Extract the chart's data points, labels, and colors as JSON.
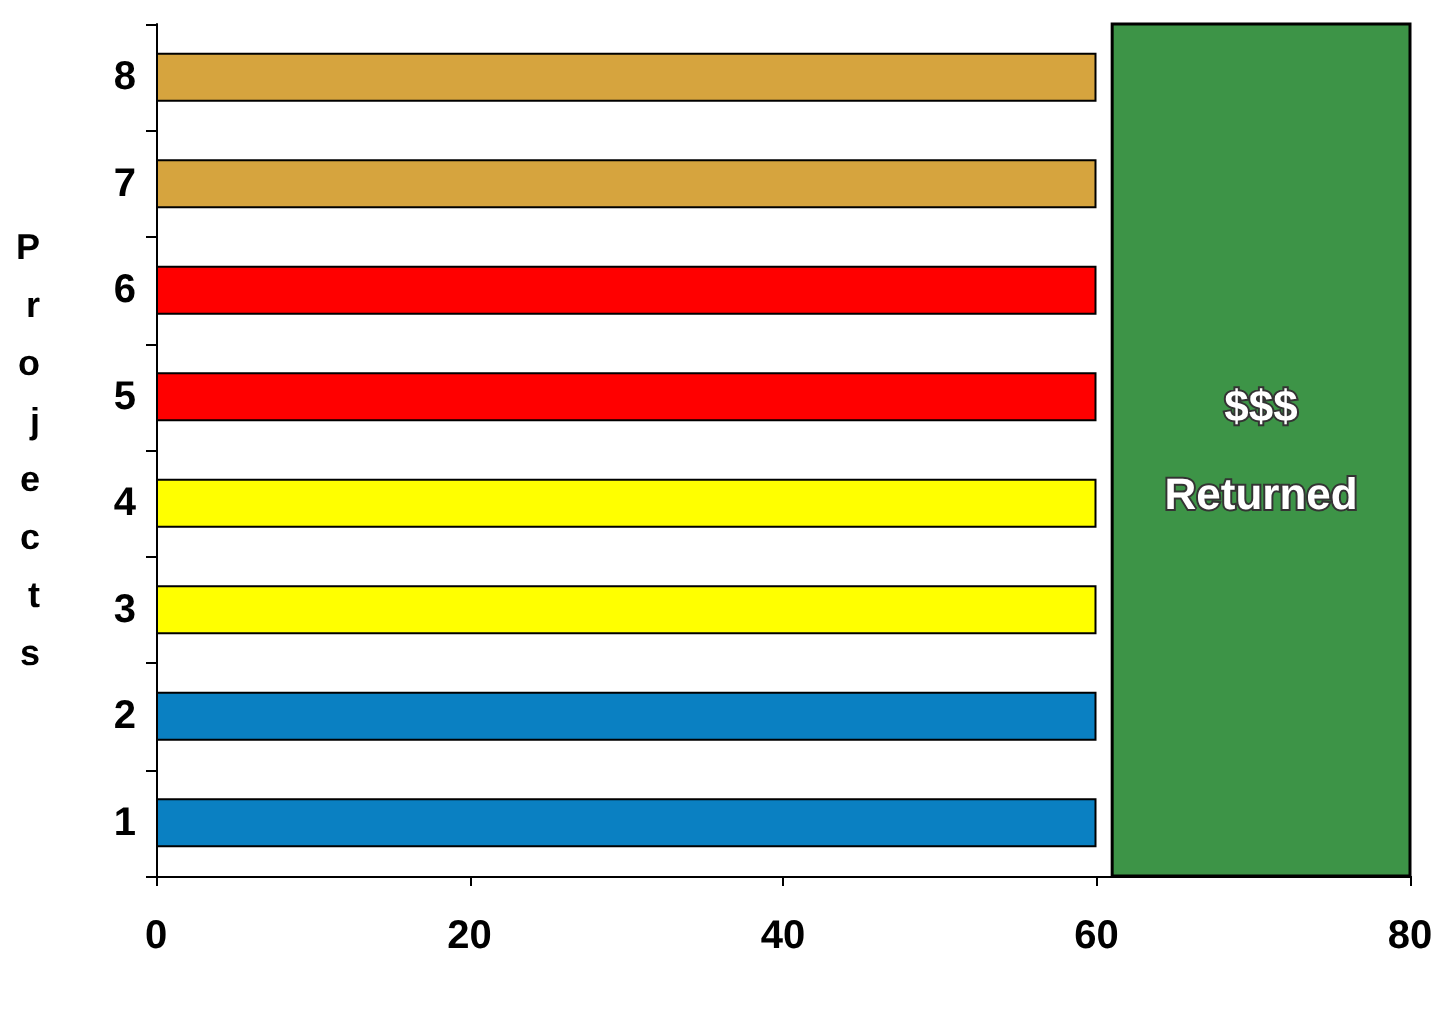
{
  "chart_data": {
    "type": "bar",
    "orientation": "horizontal",
    "ylabel": "Projects",
    "categories": [
      "8",
      "7",
      "6",
      "5",
      "4",
      "3",
      "2",
      "1"
    ],
    "values": [
      60,
      60,
      60,
      60,
      60,
      60,
      60,
      60
    ],
    "colors": [
      "#d6a43e",
      "#d6a43e",
      "#ff0000",
      "#ff0000",
      "#ffff00",
      "#ffff00",
      "#0a80c2",
      "#0a80c2"
    ],
    "xlim": [
      0,
      80
    ],
    "xticks": [
      0,
      20,
      40,
      60,
      80
    ],
    "grid": false,
    "bands": [
      {
        "axis": "x",
        "from": 61,
        "to": 80,
        "label": "$$$\nReturned",
        "color": "#3d9447"
      }
    ]
  }
}
